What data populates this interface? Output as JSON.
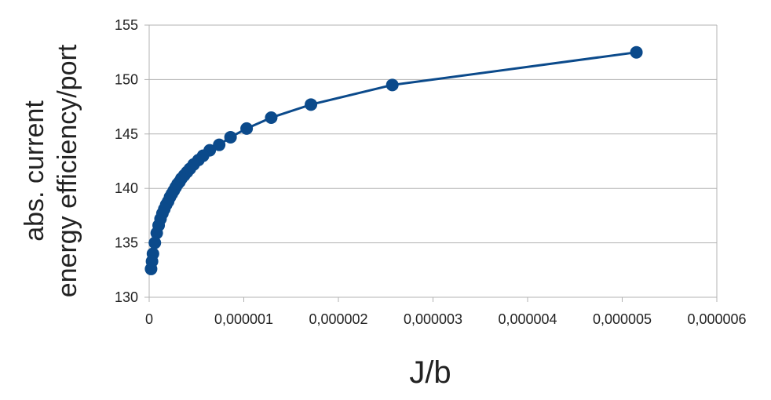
{
  "chart_data": {
    "type": "scatter",
    "title": "",
    "xlabel": "J/b",
    "ylabel_lines": [
      "abs. current",
      "energy efficiency/port"
    ],
    "xlim": [
      0,
      6e-06
    ],
    "ylim": [
      130,
      155
    ],
    "x_ticks": [
      0,
      1e-06,
      2e-06,
      3e-06,
      4e-06,
      5e-06,
      6e-06
    ],
    "x_tick_labels": [
      "0",
      "0,000001",
      "0,000002",
      "0,000003",
      "0,000004",
      "0,000005",
      "0,000006"
    ],
    "y_ticks": [
      130,
      135,
      140,
      145,
      150,
      155
    ],
    "y_tick_labels": [
      "130",
      "135",
      "140",
      "145",
      "150",
      "155"
    ],
    "grid": "horizontal",
    "legend": "none",
    "colors": {
      "series": "#0b4a8b",
      "grid": "#b3b3b3",
      "axis": "#b3b3b3"
    },
    "series": [
      {
        "connected": true,
        "x": [
          5.15e-06,
          2.57e-06,
          1.71e-06,
          1.29e-06,
          1.03e-06,
          8.6e-07,
          7.4e-07,
          6.4e-07,
          5.7e-07,
          5.2e-07,
          4.7e-07,
          4.3e-07,
          4e-07,
          3.7e-07,
          3.4e-07,
          3.2e-07,
          3e-07,
          2.8e-07,
          2.6e-07,
          2.4e-07,
          2.2e-07,
          2e-07,
          1.8e-07,
          1.6e-07,
          1.4e-07,
          1.2e-07,
          1e-07,
          8e-08,
          6e-08,
          4e-08,
          3e-08,
          2e-08
        ],
        "y": [
          152.5,
          149.5,
          147.7,
          146.5,
          145.5,
          144.7,
          144.0,
          143.5,
          143.0,
          142.6,
          142.2,
          141.8,
          141.5,
          141.2,
          140.9,
          140.6,
          140.4,
          140.1,
          139.8,
          139.5,
          139.2,
          138.8,
          138.5,
          138.1,
          137.7,
          137.2,
          136.6,
          135.9,
          135.0,
          134.0,
          133.3,
          132.6
        ]
      }
    ]
  }
}
